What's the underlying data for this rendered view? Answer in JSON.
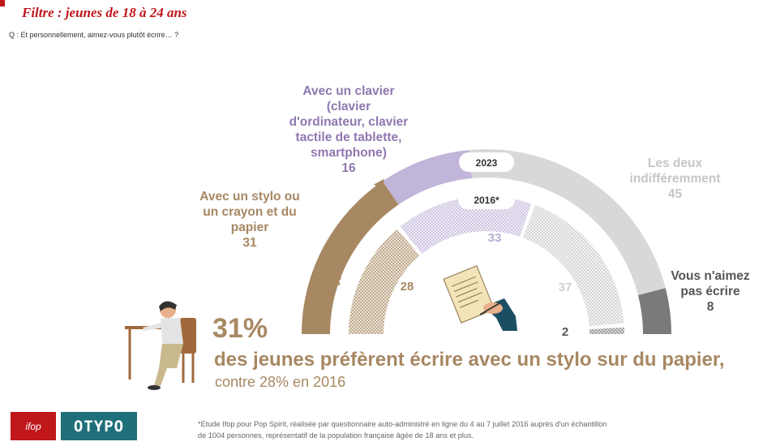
{
  "header": {
    "filter": "Filtre : jeunes de 18 à 24 ans",
    "question": "Q : Et personnellement, aimez-vous plutôt écrire… ?"
  },
  "chart_data": {
    "type": "gauge",
    "series": [
      {
        "name": "2023",
        "values": [
          31,
          16,
          45,
          8
        ]
      },
      {
        "name": "2016*",
        "values": [
          28,
          33,
          37,
          2
        ]
      }
    ],
    "categories": [
      "Avec un stylo ou un crayon et du papier",
      "Avec un clavier (clavier d'ordinateur, clavier tactile de tablette, smartphone)",
      "Les deux indifféremment",
      "Vous n'aimez pas écrire"
    ],
    "colors": [
      "#a78863",
      "#c1b5d9",
      "#d8d8d8",
      "#7a7a7a"
    ]
  },
  "labels": {
    "stylo": [
      "Avec un stylo ou",
      "un crayon et du",
      "papier"
    ],
    "stylo_value": "31",
    "clavier": [
      "Avec un clavier",
      "(clavier",
      "d'ordinateur, clavier",
      "tactile de tablette,",
      "smartphone)"
    ],
    "clavier_value": "16",
    "deux": [
      "Les deux",
      "indifféremment"
    ],
    "deux_value": "45",
    "pas": [
      "Vous n'aimez",
      "pas écrire"
    ],
    "pas_value": "8",
    "inner_28": "28",
    "inner_33": "33",
    "inner_37": "37",
    "inner_2": "2",
    "year_2023": "2023",
    "year_2016": "2016*"
  },
  "highlight": {
    "percent": "31%",
    "statement": "des jeunes préfèrent écrire avec un stylo sur du papier,",
    "comparison": "contre 28% en 2016"
  },
  "footnote": [
    "*Etude Ifop pour Pop Spirit, réalisée par questionnaire auto-administré en ligne du 4 au 7 juillet 2016 auprès d'un échantillon",
    "de 1004 personnes, représentatif de la population française âgée de 18 ans et plus."
  ],
  "logos": {
    "ifop": "ifop",
    "otypo": "OTYPO"
  }
}
